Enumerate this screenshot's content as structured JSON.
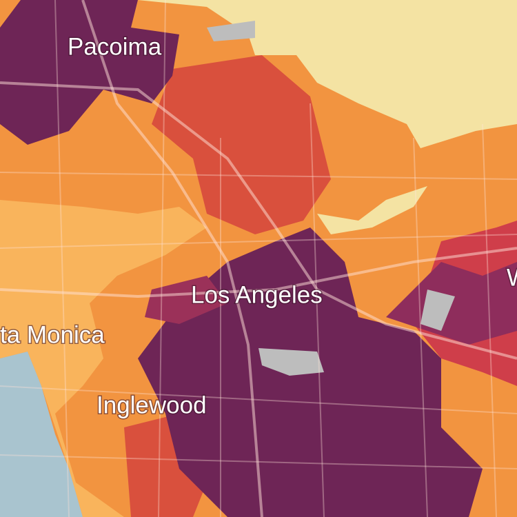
{
  "map": {
    "labels": [
      "Pacoima",
      "Los Angeles",
      "ta Monica",
      "Inglewood",
      "W"
    ]
  }
}
